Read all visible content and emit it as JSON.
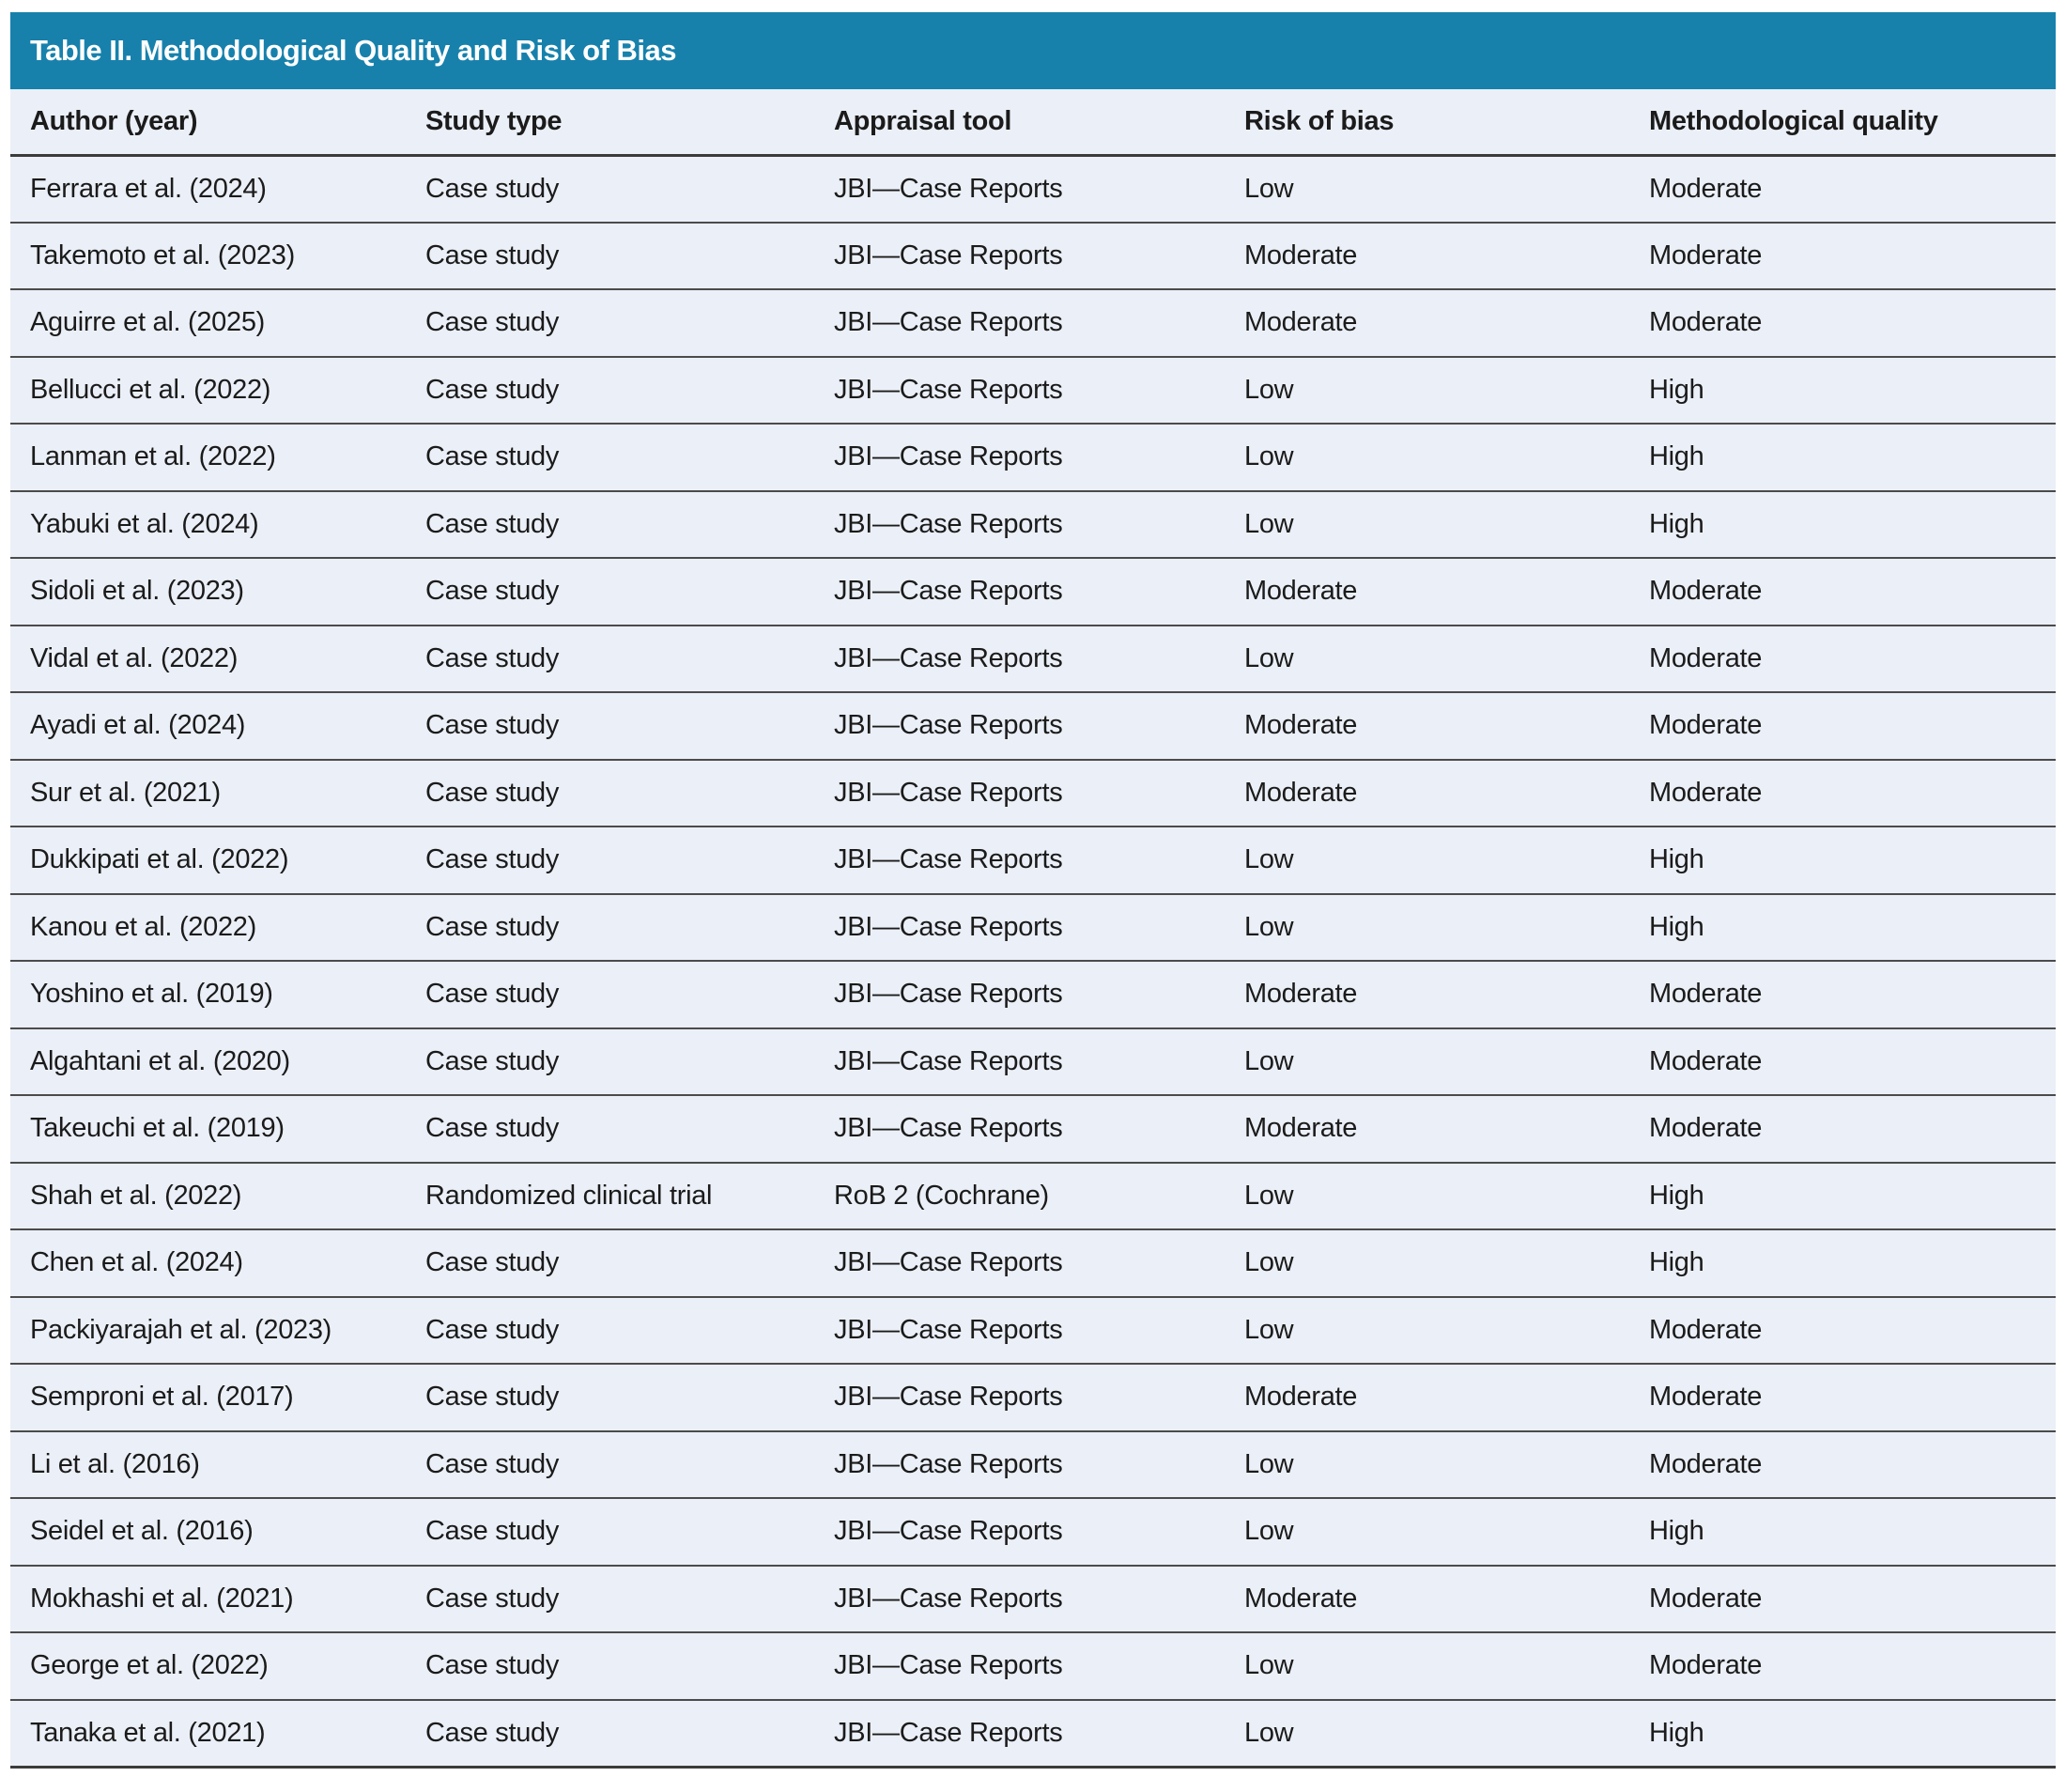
{
  "title": "Table II. Methodological Quality and Risk of Bias",
  "colors": {
    "title_bar_bg": "#1781ac",
    "title_text": "#ffffff",
    "row_bg": "#ebeff7",
    "divider": "#4b4b4b",
    "strong_divider": "#3b3b3b",
    "text": "#1b1b1b"
  },
  "table": {
    "columns": [
      "Author (year)",
      "Study type",
      "Appraisal tool",
      "Risk of bias",
      "Methodological quality"
    ],
    "rows": [
      [
        "Ferrara et al. (2024)",
        "Case study",
        "JBI—Case Reports",
        "Low",
        "Moderate"
      ],
      [
        "Takemoto et al. (2023)",
        "Case study",
        "JBI—Case Reports",
        "Moderate",
        "Moderate"
      ],
      [
        "Aguirre et al. (2025)",
        "Case study",
        "JBI—Case Reports",
        "Moderate",
        "Moderate"
      ],
      [
        "Bellucci et al. (2022)",
        "Case study",
        "JBI—Case Reports",
        "Low",
        "High"
      ],
      [
        "Lanman et al. (2022)",
        "Case study",
        "JBI—Case Reports",
        "Low",
        "High"
      ],
      [
        "Yabuki et al. (2024)",
        "Case study",
        "JBI—Case Reports",
        "Low",
        "High"
      ],
      [
        "Sidoli et al. (2023)",
        "Case study",
        "JBI—Case Reports",
        "Moderate",
        "Moderate"
      ],
      [
        "Vidal et al. (2022)",
        "Case study",
        "JBI—Case Reports",
        "Low",
        "Moderate"
      ],
      [
        "Ayadi et al. (2024)",
        "Case study",
        "JBI—Case Reports",
        "Moderate",
        "Moderate"
      ],
      [
        "Sur et al. (2021)",
        "Case study",
        "JBI—Case Reports",
        "Moderate",
        "Moderate"
      ],
      [
        "Dukkipati et al. (2022)",
        "Case study",
        "JBI—Case Reports",
        "Low",
        "High"
      ],
      [
        "Kanou et al. (2022)",
        "Case study",
        "JBI—Case Reports",
        "Low",
        "High"
      ],
      [
        "Yoshino et al. (2019)",
        "Case study",
        "JBI—Case Reports",
        "Moderate",
        "Moderate"
      ],
      [
        "Algahtani et al. (2020)",
        "Case study",
        "JBI—Case Reports",
        "Low",
        "Moderate"
      ],
      [
        "Takeuchi et al. (2019)",
        "Case study",
        "JBI—Case Reports",
        "Moderate",
        "Moderate"
      ],
      [
        "Shah et al. (2022)",
        "Randomized clinical trial",
        "RoB 2 (Cochrane)",
        "Low",
        "High"
      ],
      [
        "Chen et al. (2024)",
        "Case study",
        "JBI—Case Reports",
        "Low",
        "High"
      ],
      [
        "Packiyarajah et al. (2023)",
        "Case study",
        "JBI—Case Reports",
        "Low",
        "Moderate"
      ],
      [
        "Semproni et al. (2017)",
        "Case study",
        "JBI—Case Reports",
        "Moderate",
        "Moderate"
      ],
      [
        "Li et al. (2016)",
        "Case study",
        "JBI—Case Reports",
        "Low",
        "Moderate"
      ],
      [
        "Seidel et al. (2016)",
        "Case study",
        "JBI—Case Reports",
        "Low",
        "High"
      ],
      [
        "Mokhashi et al. (2021)",
        "Case study",
        "JBI—Case Reports",
        "Moderate",
        "Moderate"
      ],
      [
        "George et al. (2022)",
        "Case study",
        "JBI—Case Reports",
        "Low",
        "Moderate"
      ],
      [
        "Tanaka et al. (2021)",
        "Case study",
        "JBI—Case Reports",
        "Low",
        "High"
      ]
    ]
  }
}
